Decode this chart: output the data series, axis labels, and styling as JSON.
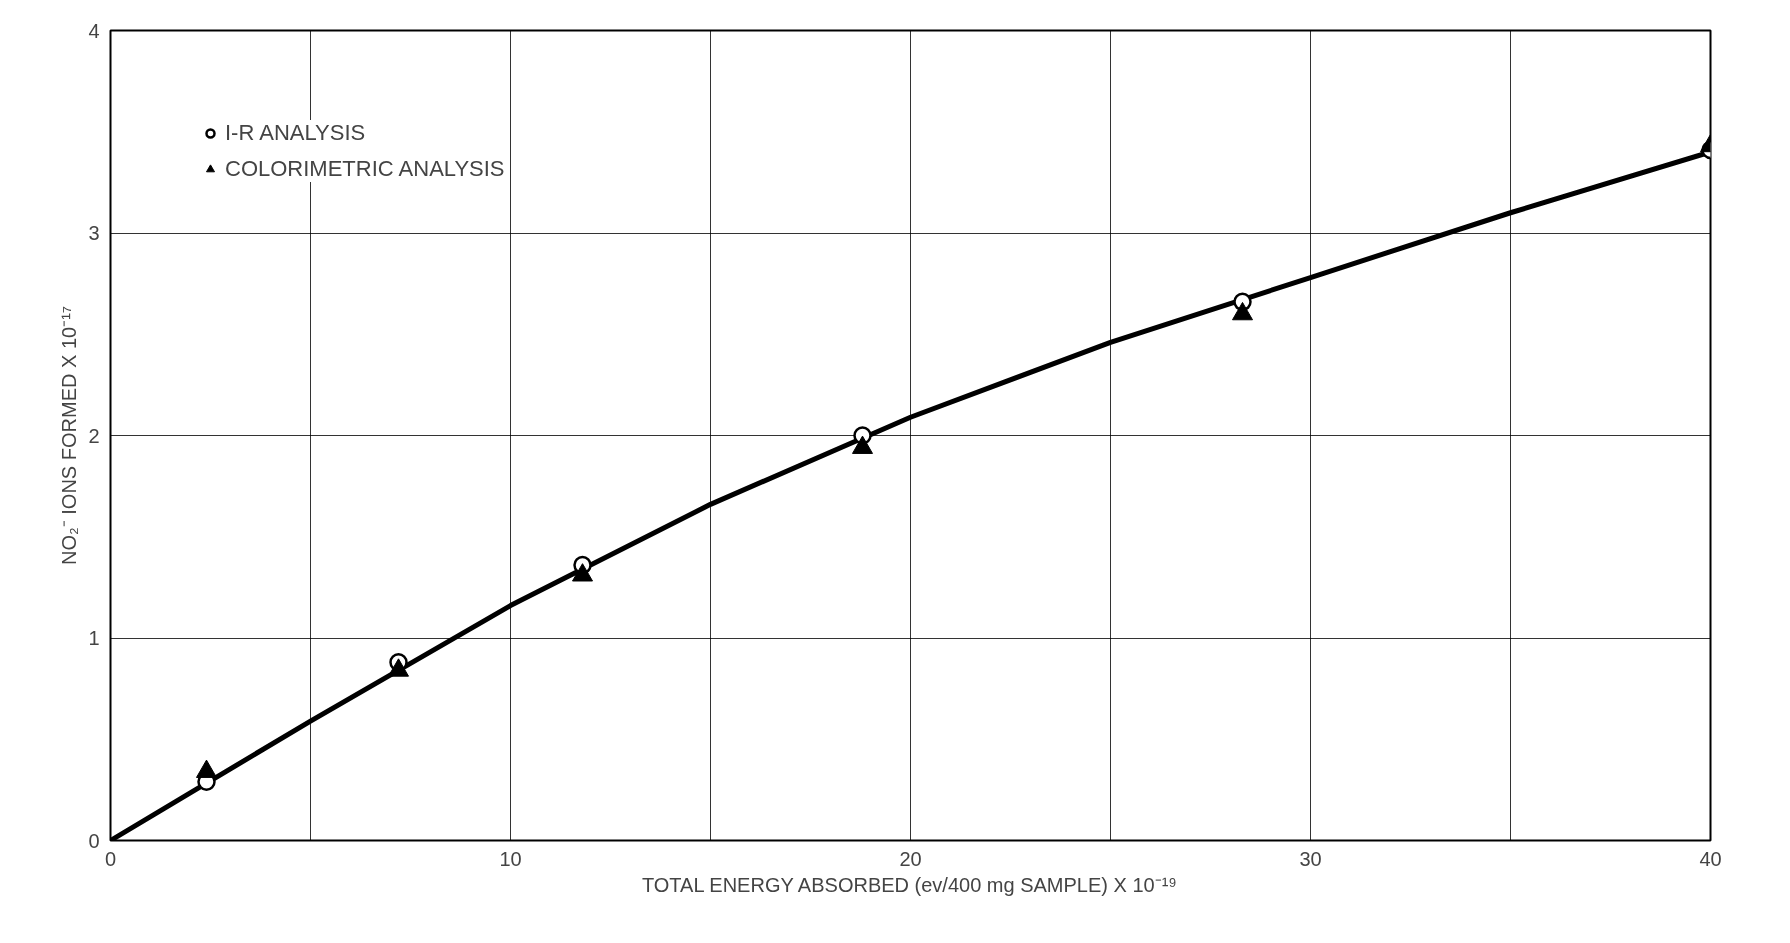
{
  "chart_data": {
    "type": "scatter",
    "xlabel": "TOTAL ENERGY ABSORBED (ev/400 mg SAMPLE) X 10⁻¹⁹",
    "ylabel": "NO₂⁻ IONS FORMED X 10⁻¹⁷",
    "xlim": [
      0,
      40
    ],
    "ylim": [
      0,
      4
    ],
    "xticks": [
      0,
      {
        "value": 5,
        "label": null
      },
      10,
      {
        "value": 15,
        "label": null
      },
      20,
      {
        "value": 25,
        "label": null
      },
      30,
      {
        "value": 35,
        "label": null
      },
      40
    ],
    "yticks": [
      0,
      1,
      2,
      3,
      4
    ],
    "grid": true,
    "legend": "top left",
    "series": [
      {
        "type": "line",
        "color": "#000000",
        "line_style": "solid",
        "x": [
          0,
          5,
          10,
          15,
          20,
          25,
          30,
          35,
          40
        ],
        "values": [
          0,
          0.59,
          1.16,
          1.66,
          2.09,
          2.46,
          2.78,
          3.1,
          3.4
        ]
      },
      {
        "name": "I-R ANALYSIS",
        "color": "#000000",
        "marker": "circle",
        "x": [
          2.4,
          7.2,
          11.8,
          18.8,
          28.3,
          40
        ],
        "values": [
          0.29,
          0.88,
          1.36,
          2.0,
          2.66,
          3.41
        ]
      },
      {
        "name": "COLORIMETRIC ANALYSIS",
        "color": "#000000",
        "marker": "triangle",
        "x": [
          2.4,
          7.2,
          11.8,
          18.8,
          28.3,
          40
        ],
        "values": [
          0.34,
          0.84,
          1.31,
          1.94,
          2.6,
          3.43
        ]
      }
    ]
  }
}
